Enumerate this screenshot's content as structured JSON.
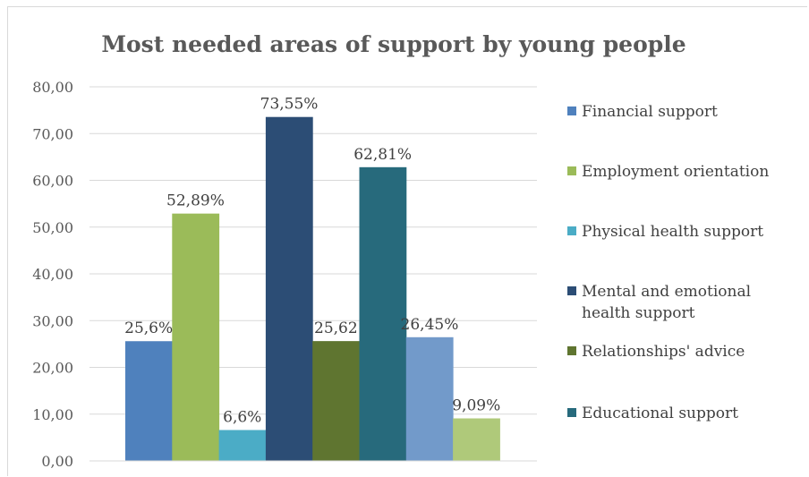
{
  "chart_data": {
    "type": "bar",
    "title": "Most needed areas of support by young people",
    "xlabel": "",
    "ylabel": "",
    "ylim": [
      0,
      80
    ],
    "y_ticks": [
      "0,00",
      "10,00",
      "20,00",
      "30,00",
      "40,00",
      "50,00",
      "60,00",
      "70,00",
      "80,00"
    ],
    "grid": true,
    "legend_position": "right",
    "series": [
      {
        "name": "Financial support",
        "value": 25.6,
        "label": "25,6%",
        "color": "#4f81bd"
      },
      {
        "name": "Employment orientation",
        "value": 52.89,
        "label": "52,89%",
        "color": "#9bbb59"
      },
      {
        "name": "Physical health support",
        "value": 6.6,
        "label": "6,6%",
        "color": "#4bacc6"
      },
      {
        "name": "Mental and emotional health support",
        "value": 73.55,
        "label": "73,55%",
        "color": "#2c4d75"
      },
      {
        "name": "Relationships' advice",
        "value": 25.62,
        "label": "25,62",
        "color": "#5f7530"
      },
      {
        "name": "Educational support",
        "value": 62.81,
        "label": "62,81%",
        "color": "#276a7c"
      },
      {
        "name": "",
        "value": 26.45,
        "label": "26,45%",
        "color": "#729aca"
      },
      {
        "name": "",
        "value": 9.09,
        "label": "9,09%",
        "color": "#afc97a"
      }
    ]
  }
}
